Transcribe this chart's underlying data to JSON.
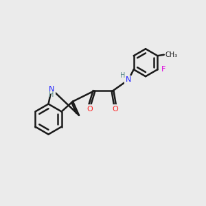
{
  "bg_color": "#ebebeb",
  "bond_color": "#1a1a1a",
  "bond_width": 1.8,
  "atom_colors": {
    "N": "#2020ff",
    "O": "#ff2020",
    "F": "#dd00dd",
    "H": "#558888",
    "C": "#1a1a1a"
  },
  "figsize": [
    3.0,
    3.0
  ],
  "dpi": 100
}
